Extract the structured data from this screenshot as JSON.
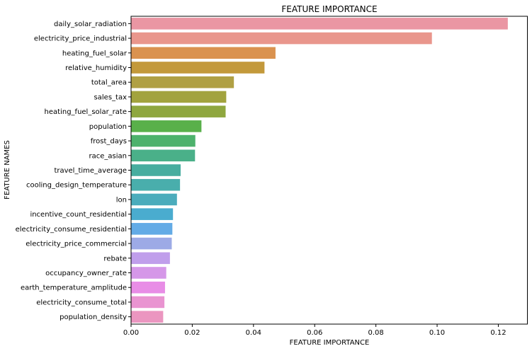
{
  "chart_data": {
    "type": "bar",
    "orientation": "horizontal",
    "title": "FEATURE IMPORTANCE",
    "xlabel": "FEATURE IMPORTANCE",
    "ylabel": "FEATURE NAMES",
    "xlim": [
      0,
      0.1295
    ],
    "xticks": [
      "0.00",
      "0.02",
      "0.04",
      "0.06",
      "0.08",
      "0.10",
      "0.12"
    ],
    "grid": false,
    "categories": [
      "daily_solar_radiation",
      "electricity_price_industrial",
      "heating_fuel_solar",
      "relative_humidity",
      "total_area",
      "sales_tax",
      "heating_fuel_solar_rate",
      "population",
      "frost_days",
      "race_asian",
      "travel_time_average",
      "cooling_design_temperature",
      "lon",
      "incentive_count_residential",
      "electricity_consume_residential",
      "electricity_price_commercial",
      "rebate",
      "occupancy_owner_rate",
      "earth_temperature_amplitude",
      "electricity_consume_total",
      "population_density"
    ],
    "values": [
      0.1231,
      0.0983,
      0.0472,
      0.0436,
      0.0336,
      0.0311,
      0.0309,
      0.023,
      0.021,
      0.0209,
      0.0162,
      0.016,
      0.015,
      0.0137,
      0.0135,
      0.0133,
      0.0127,
      0.0115,
      0.0111,
      0.0109,
      0.0105
    ],
    "colors": [
      "#ea96a3",
      "#e9968c",
      "#da924f",
      "#c3993b",
      "#b0a044",
      "#a2a33e",
      "#8fa73f",
      "#59b04a",
      "#4db26c",
      "#4ab089",
      "#47ad9f",
      "#49aeac",
      "#4bacbc",
      "#4aaccf",
      "#63abe6",
      "#9daae6",
      "#c09eeb",
      "#d597e8",
      "#e88de6",
      "#e994d1",
      "#eb96c0"
    ]
  }
}
